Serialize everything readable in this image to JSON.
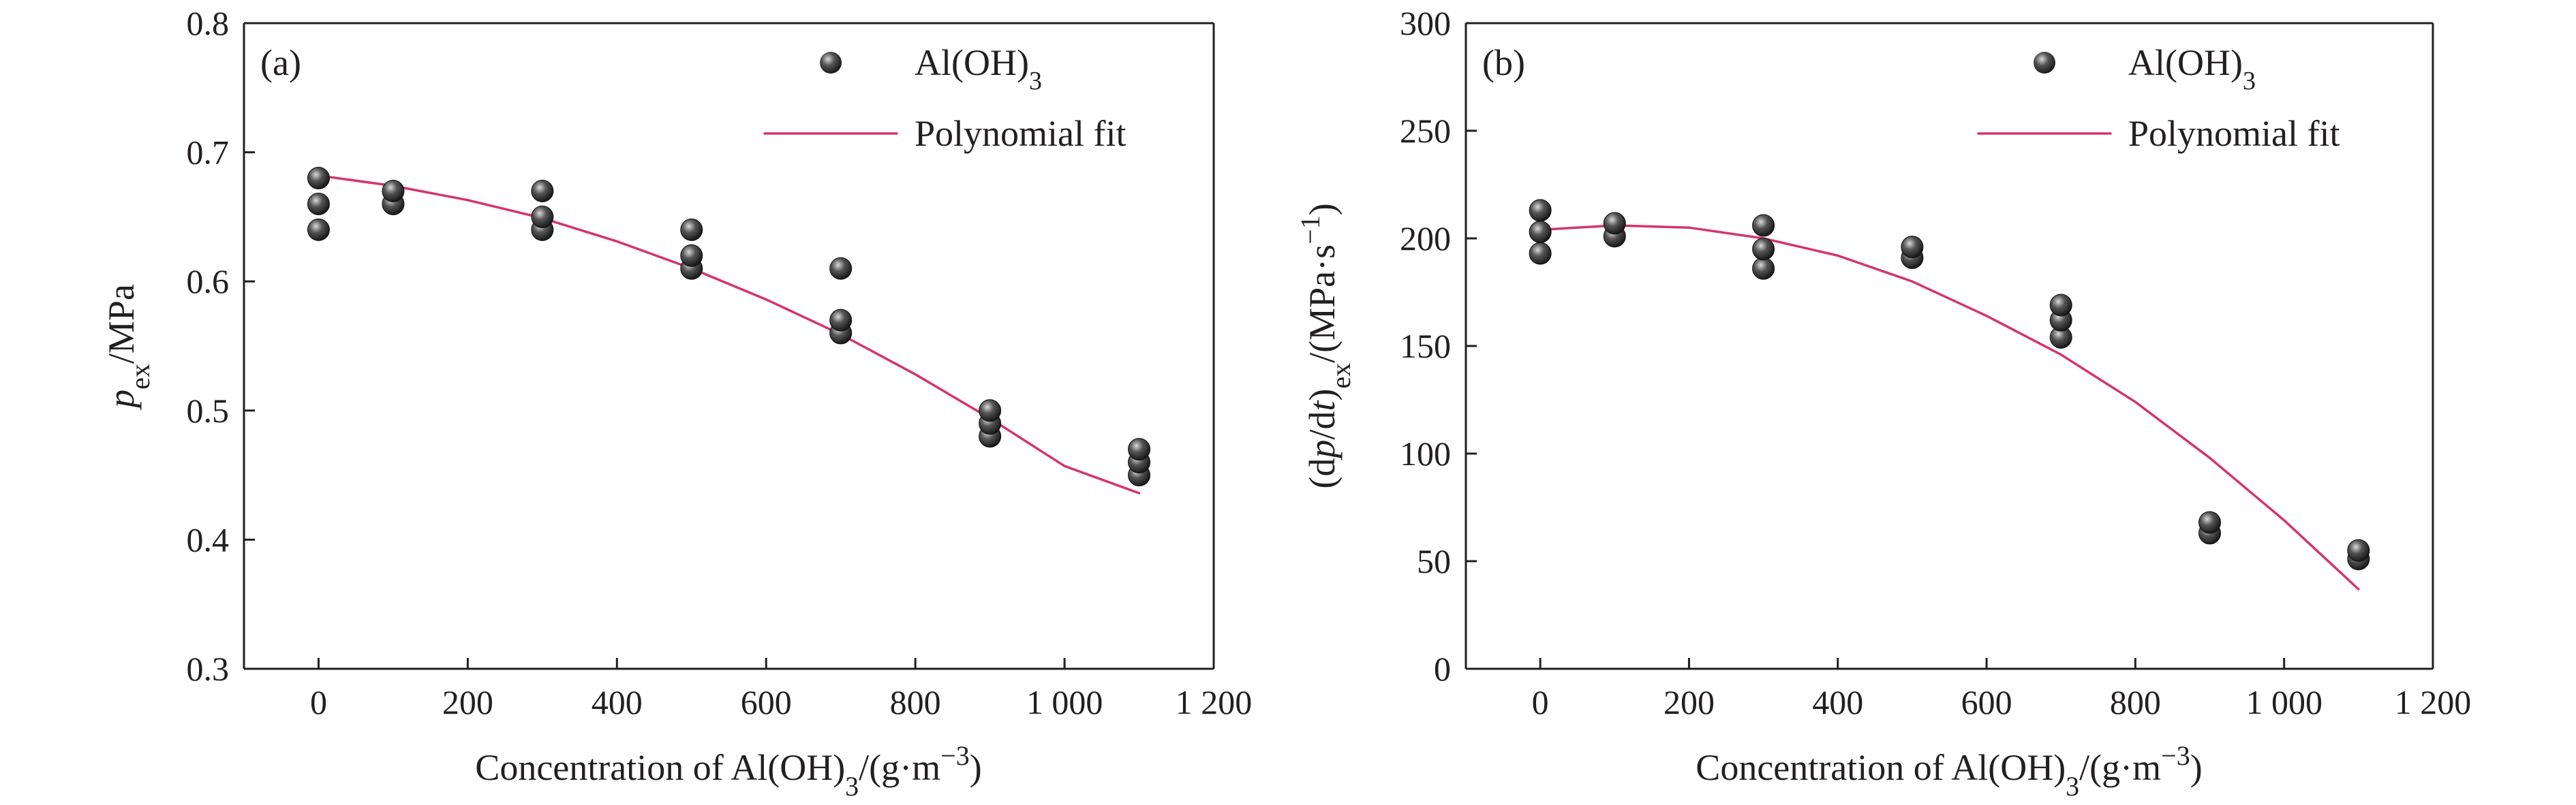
{
  "figure": {
    "colors": {
      "fit_line": "#d6336c",
      "marker_dark": "#1a1a1a",
      "marker_light": "#d9d9d9",
      "axis": "#231f20"
    },
    "marker_icon": "sphere-marker-icon"
  },
  "chart_data": [
    {
      "type": "scatter",
      "panel_label": "(a)",
      "xlabel": "Concentration of Al(OH)3/(g·m−3)",
      "ylabel": "pex/MPa",
      "xlim": [
        -100,
        1200
      ],
      "ylim": [
        0.3,
        0.8
      ],
      "x_ticks": [
        0,
        200,
        400,
        600,
        800,
        1000,
        1200
      ],
      "x_tick_labels": [
        "0",
        "200",
        "400",
        "600",
        "800",
        "1 000",
        "1 200"
      ],
      "y_ticks": [
        0.3,
        0.4,
        0.5,
        0.6,
        0.7,
        0.8
      ],
      "y_tick_labels": [
        "0.3",
        "0.4",
        "0.5",
        "0.6",
        "0.7",
        "0.8"
      ],
      "grid": false,
      "legend_position": "top-right",
      "series": [
        {
          "name": "Al(OH)3",
          "kind": "points",
          "points": [
            [
              0,
              0.64
            ],
            [
              0,
              0.66
            ],
            [
              0,
              0.68
            ],
            [
              100,
              0.66
            ],
            [
              100,
              0.67
            ],
            [
              300,
              0.64
            ],
            [
              300,
              0.65
            ],
            [
              300,
              0.67
            ],
            [
              500,
              0.61
            ],
            [
              500,
              0.62
            ],
            [
              500,
              0.64
            ],
            [
              700,
              0.56
            ],
            [
              700,
              0.57
            ],
            [
              700,
              0.61
            ],
            [
              900,
              0.48
            ],
            [
              900,
              0.49
            ],
            [
              900,
              0.5
            ],
            [
              1100,
              0.45
            ],
            [
              1100,
              0.46
            ],
            [
              1100,
              0.47
            ]
          ]
        },
        {
          "name": "Polynomial fit",
          "kind": "line",
          "points": [
            [
              0,
              0.682
            ],
            [
              100,
              0.674
            ],
            [
              200,
              0.663
            ],
            [
              300,
              0.649
            ],
            [
              400,
              0.631
            ],
            [
              500,
              0.61
            ],
            [
              600,
              0.586
            ],
            [
              700,
              0.559
            ],
            [
              800,
              0.528
            ],
            [
              900,
              0.494
            ],
            [
              1000,
              0.457
            ],
            [
              1100,
              0.436
            ]
          ]
        }
      ]
    },
    {
      "type": "scatter",
      "panel_label": "(b)",
      "xlabel": "Concentration of Al(OH)3/(g·m−3)",
      "ylabel": "(dp/dt)ex/(MPa·s−1)",
      "xlim": [
        -100,
        1200
      ],
      "ylim": [
        0,
        300
      ],
      "x_ticks": [
        0,
        200,
        400,
        600,
        800,
        1000,
        1200
      ],
      "x_tick_labels": [
        "0",
        "200",
        "400",
        "600",
        "800",
        "1 000",
        "1 200"
      ],
      "y_ticks": [
        0,
        50,
        100,
        150,
        200,
        250,
        300
      ],
      "y_tick_labels": [
        "0",
        "50",
        "100",
        "150",
        "200",
        "250",
        "300"
      ],
      "grid": false,
      "legend_position": "top-right",
      "series": [
        {
          "name": "Al(OH)3",
          "kind": "points",
          "points": [
            [
              0,
              193
            ],
            [
              0,
              203
            ],
            [
              0,
              213
            ],
            [
              100,
              201
            ],
            [
              100,
              207
            ],
            [
              300,
              186
            ],
            [
              300,
              195
            ],
            [
              300,
              206
            ],
            [
              500,
              191
            ],
            [
              500,
              196
            ],
            [
              700,
              154
            ],
            [
              700,
              162
            ],
            [
              700,
              169
            ],
            [
              900,
              63
            ],
            [
              900,
              68
            ],
            [
              1100,
              51
            ],
            [
              1100,
              55
            ]
          ]
        },
        {
          "name": "Polynomial fit",
          "kind": "line",
          "points": [
            [
              0,
              204
            ],
            [
              100,
              206
            ],
            [
              200,
              205
            ],
            [
              300,
              200
            ],
            [
              400,
              192
            ],
            [
              500,
              180
            ],
            [
              600,
              164
            ],
            [
              700,
              146
            ],
            [
              800,
              124
            ],
            [
              900,
              98
            ],
            [
              1000,
              69
            ],
            [
              1100,
              37
            ]
          ]
        }
      ]
    }
  ]
}
